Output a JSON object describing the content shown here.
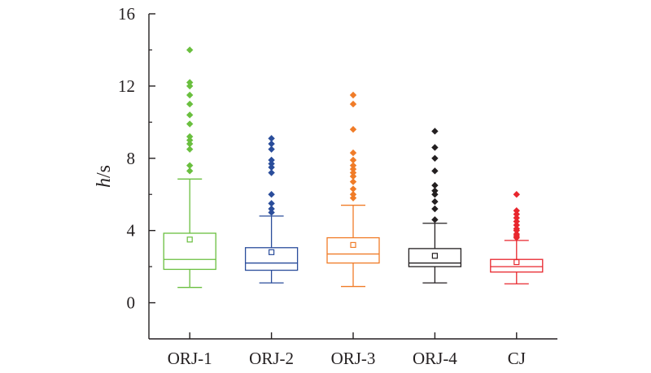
{
  "chart_data": {
    "type": "box",
    "title": "",
    "xlabel": "",
    "ylabel_italic": "h",
    "ylabel_unit": "/s",
    "ylim": [
      -2,
      16
    ],
    "yticks": [
      0,
      4,
      8,
      12,
      16
    ],
    "grid": false,
    "categories": [
      "ORJ-1",
      "ORJ-2",
      "ORJ-3",
      "ORJ-4",
      "CJ"
    ],
    "series": [
      {
        "category": "ORJ-1",
        "color": "#6abf3f",
        "whisker_low": 0.85,
        "q1": 1.85,
        "median": 2.4,
        "q3": 3.85,
        "whisker_high": 6.85,
        "mean": 3.5,
        "outliers": [
          7.3,
          7.6,
          8.5,
          8.8,
          9.0,
          9.2,
          9.9,
          10.4,
          11.0,
          11.5,
          12.0,
          12.2,
          14.0
        ]
      },
      {
        "category": "ORJ-2",
        "color": "#2a4d9b",
        "whisker_low": 1.1,
        "q1": 1.8,
        "median": 2.2,
        "q3": 3.05,
        "whisker_high": 4.8,
        "mean": 2.8,
        "outliers": [
          5.0,
          5.2,
          5.5,
          6.0,
          7.2,
          7.5,
          7.7,
          7.9,
          8.5,
          8.8,
          9.1
        ]
      },
      {
        "category": "ORJ-3",
        "color": "#f07c28",
        "whisker_low": 0.9,
        "q1": 2.2,
        "median": 2.7,
        "q3": 3.6,
        "whisker_high": 5.4,
        "mean": 3.2,
        "outliers": [
          5.8,
          6.0,
          6.3,
          6.7,
          7.0,
          7.2,
          7.4,
          7.6,
          7.9,
          8.3,
          9.6,
          11.0,
          11.5
        ]
      },
      {
        "category": "ORJ-4",
        "color": "#231f20",
        "whisker_low": 1.1,
        "q1": 2.0,
        "median": 2.2,
        "q3": 3.0,
        "whisker_high": 4.4,
        "mean": 2.6,
        "outliers": [
          4.6,
          5.2,
          5.6,
          6.0,
          6.2,
          6.5,
          7.3,
          8.0,
          8.6,
          9.5
        ]
      },
      {
        "category": "CJ",
        "color": "#e8262d",
        "whisker_low": 1.05,
        "q1": 1.7,
        "median": 2.0,
        "q3": 2.4,
        "whisker_high": 3.45,
        "mean": 2.25,
        "outliers": [
          3.6,
          3.7,
          3.8,
          4.0,
          4.1,
          4.3,
          4.5,
          4.7,
          4.9,
          5.1,
          6.0
        ]
      }
    ]
  }
}
